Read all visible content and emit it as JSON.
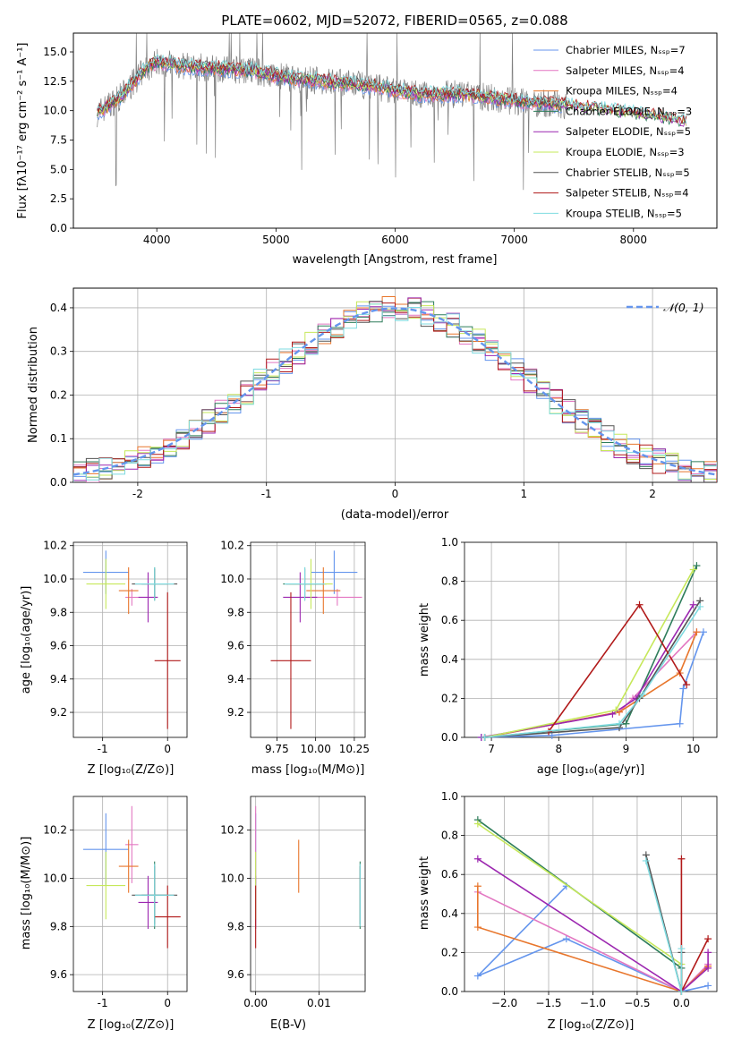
{
  "chart_data": [
    {
      "id": "spectrum",
      "type": "line",
      "title": "PLATE=0602, MJD=52072, FIBERID=0565, z=0.088",
      "xlabel": "wavelength [Angstrom, rest frame]",
      "ylabel": "Flux [fλ10⁻¹⁷ erg cm⁻² s⁻¹ A⁻¹]",
      "xlim": [
        3300,
        8700
      ],
      "ylim": [
        0,
        16.6
      ],
      "xticks": [
        4000,
        5000,
        6000,
        7000,
        8000
      ],
      "yticks": [
        0.0,
        2.5,
        5.0,
        7.5,
        10.0,
        12.5,
        15.0
      ],
      "grid": false,
      "legend_position": "upper right",
      "series": [
        {
          "name": "Chabrier MILES, Nₛₛₚ=7",
          "color": "#6495ed"
        },
        {
          "name": "Salpeter MILES, Nₛₛₚ=4",
          "color": "#e377c2"
        },
        {
          "name": "Kroupa MILES, Nₛₛₚ=4",
          "color": "#e8762c"
        },
        {
          "name": "Chabrier ELODIE, Nₛₛₚ=3",
          "color": "#2e7d5b"
        },
        {
          "name": "Salpeter ELODIE, Nₛₛₚ=5",
          "color": "#9c27b0"
        },
        {
          "name": "Kroupa ELODIE, Nₛₛₚ=3",
          "color": "#c6e85a"
        },
        {
          "name": "Chabrier STELIB, Nₛₛₚ=5",
          "color": "#555555"
        },
        {
          "name": "Salpeter STELIB, Nₛₛₚ=4",
          "color": "#b11a1a"
        },
        {
          "name": "Kroupa STELIB, Nₛₛₚ=5",
          "color": "#7fdbe0"
        }
      ],
      "data_color": "#808080",
      "continuum": {
        "x": [
          3500,
          3700,
          3900,
          4000,
          4200,
          4500,
          4800,
          5100,
          5400,
          5800,
          6200,
          6600,
          7000,
          7400,
          7800,
          8200,
          8450
        ],
        "y": [
          9.8,
          11.2,
          13.5,
          14.2,
          13.8,
          13.6,
          13.4,
          12.8,
          12.5,
          12.1,
          11.4,
          11.4,
          10.8,
          10.5,
          10.0,
          9.5,
          9.0
        ]
      }
    },
    {
      "id": "residuals",
      "type": "histogram",
      "xlabel": "(data-model)/error",
      "ylabel": "Normed distribution",
      "xlim": [
        -2.5,
        2.5
      ],
      "ylim": [
        0,
        0.445
      ],
      "xticks": [
        -2,
        -1,
        0,
        1,
        2
      ],
      "yticks": [
        0.0,
        0.1,
        0.2,
        0.3,
        0.4
      ],
      "grid": true,
      "legend_position": "upper right",
      "reference_curve": {
        "name": "𝒩(0, 1)",
        "color": "#6495ed",
        "style": "dashed"
      },
      "bin_width": 0.1
    },
    {
      "id": "age-vs-Z",
      "type": "errorbar",
      "xlabel": "Z [log₁₀(Z/Z⊙)]",
      "ylabel": "age  [log₁₀(age/yr)]",
      "xlim": [
        -1.45,
        0.3
      ],
      "ylim": [
        9.05,
        10.22
      ],
      "xticks": [
        -1,
        0
      ],
      "yticks": [
        9.2,
        9.4,
        9.6,
        9.8,
        10.0,
        10.2
      ],
      "grid": true
    },
    {
      "id": "age-vs-mass",
      "type": "errorbar",
      "xlabel": "mass [log₁₀(M/M⊙)]",
      "ylabel": "",
      "xlim": [
        9.58,
        10.32
      ],
      "ylim": [
        9.05,
        10.22
      ],
      "xticks": [
        9.75,
        10.0,
        10.25
      ],
      "xticklabels": [
        "9.75",
        "10.00",
        "10.25"
      ],
      "yticks": [
        9.2,
        9.4,
        9.6,
        9.8,
        10.0,
        10.2
      ],
      "grid": true
    },
    {
      "id": "massweight-vs-age",
      "type": "line",
      "xlabel": "age  [log₁₀(age/yr)]",
      "ylabel": "mass weight",
      "xlim": [
        6.6,
        10.35
      ],
      "ylim": [
        0,
        1.0
      ],
      "xticks": [
        7,
        8,
        9,
        10
      ],
      "yticks": [
        0.0,
        0.2,
        0.4,
        0.6,
        0.8,
        1.0
      ],
      "grid": true
    },
    {
      "id": "mass-vs-Z",
      "type": "errorbar",
      "xlabel": "Z [log₁₀(Z/Z⊙)]",
      "ylabel": "mass [log₁₀(M/M⊙)]",
      "xlim": [
        -1.45,
        0.3
      ],
      "ylim": [
        9.53,
        10.34
      ],
      "xticks": [
        -1,
        0
      ],
      "yticks": [
        9.6,
        9.8,
        10.0,
        10.2
      ],
      "grid": true
    },
    {
      "id": "mass-vs-EBV",
      "type": "errorbar",
      "xlabel": "E(B-V)",
      "ylabel": "",
      "xlim": [
        -0.0008,
        0.0173
      ],
      "ylim": [
        9.53,
        10.34
      ],
      "xticks": [
        0.0,
        0.01
      ],
      "xticklabels": [
        "0.00",
        "0.01"
      ],
      "yticks": [
        9.6,
        9.8,
        10.0,
        10.2
      ],
      "grid": true
    },
    {
      "id": "massweight-vs-Z",
      "type": "line",
      "xlabel": "Z [log₁₀(Z/Z⊙)]",
      "ylabel": "mass weight",
      "xlim": [
        -2.45,
        0.4
      ],
      "ylim": [
        0,
        1.0
      ],
      "xticks": [
        -2.0,
        -1.5,
        -1.0,
        -0.5,
        0.0
      ],
      "xticklabels": [
        "−2.0",
        "−1.5",
        "−1.0",
        "−0.5",
        "0.0"
      ],
      "yticks": [
        0.0,
        0.2,
        0.4,
        0.6,
        0.8,
        1.0
      ],
      "grid": true
    }
  ],
  "fits": [
    {
      "color": "#6495ed",
      "Z": -0.95,
      "Zerr": 0.35,
      "age": 10.04,
      "ageerr": 0.13,
      "mass": 10.12,
      "masserr": 0.15,
      "ebv": 0.0,
      "ebverr": 0.0,
      "ages": [
        6.85,
        7.9,
        9.8,
        9.85,
        10.15
      ],
      "w_age": [
        0.0,
        0.01,
        0.07,
        0.25,
        0.54
      ],
      "mets": [
        0.3,
        0.0,
        -1.3,
        -2.3,
        -1.3
      ],
      "w_met": [
        0.03,
        0.0,
        0.27,
        0.08,
        0.54
      ]
    },
    {
      "color": "#e377c2",
      "Z": -0.55,
      "Zerr": 0.1,
      "age": 9.89,
      "ageerr": 0.05,
      "mass": 10.14,
      "masserr": 0.16,
      "ebv": 0.0,
      "ebverr": 0.0,
      "ages": [
        6.9,
        8.9,
        9.1,
        10.05
      ],
      "w_age": [
        0.0,
        0.13,
        0.2,
        0.54
      ],
      "mets": [
        -2.3,
        0.0,
        0.3
      ],
      "w_met": [
        0.51,
        0.0,
        0.14
      ]
    },
    {
      "color": "#e8762c",
      "Z": -0.6,
      "Zerr": 0.15,
      "age": 9.93,
      "ageerr": 0.14,
      "mass": 10.05,
      "masserr": 0.11,
      "ebv": 0.0068,
      "ebverr": 0.0,
      "ages": [
        6.9,
        8.9,
        9.8,
        10.05
      ],
      "w_age": [
        0.0,
        0.13,
        0.33,
        0.54
      ],
      "mets": [
        -2.3,
        -2.3,
        0.0,
        0.3
      ],
      "w_met": [
        0.54,
        0.33,
        0.0,
        0.13
      ]
    },
    {
      "color": "#2e7d5b",
      "Z": -0.2,
      "Zerr": 0.2,
      "age": 9.97,
      "ageerr": 0.1,
      "mass": 9.93,
      "masserr": 0.14,
      "ebv": 0.0165,
      "ebverr": 0.0,
      "ages": [
        6.9,
        9.0,
        10.05
      ],
      "w_age": [
        0.0,
        0.07,
        0.88
      ],
      "mets": [
        -2.3,
        0.0,
        0.0
      ],
      "w_met": [
        0.88,
        0.12,
        0.0
      ]
    },
    {
      "color": "#9c27b0",
      "Z": -0.3,
      "Zerr": 0.15,
      "age": 9.89,
      "ageerr": 0.15,
      "mass": 9.9,
      "masserr": 0.11,
      "ebv": 0.0,
      "ebverr": 0.0,
      "ages": [
        6.85,
        8.8,
        9.15,
        10.0
      ],
      "w_age": [
        0.0,
        0.12,
        0.2,
        0.68
      ],
      "mets": [
        -2.3,
        0.0,
        0.3,
        0.3
      ],
      "w_met": [
        0.68,
        0.0,
        0.12,
        0.2
      ]
    },
    {
      "color": "#c6e85a",
      "Z": -0.95,
      "Zerr": 0.3,
      "age": 9.97,
      "ageerr": 0.15,
      "mass": 9.97,
      "masserr": 0.14,
      "ebv": 0.0,
      "ebverr": 0.0,
      "ages": [
        6.9,
        8.85,
        10.0
      ],
      "w_age": [
        0.0,
        0.14,
        0.86
      ],
      "mets": [
        -2.3,
        0.0,
        0.0
      ],
      "w_met": [
        0.86,
        0.14,
        0.0
      ]
    },
    {
      "color": "#555555",
      "Z": -0.2,
      "Zerr": 0.35,
      "age": 9.97,
      "ageerr": 0.09,
      "mass": 9.93,
      "masserr": 0.12,
      "ebv": 0.0165,
      "ebverr": 0.0,
      "ages": [
        6.9,
        8.9,
        9.2,
        10.1
      ],
      "w_age": [
        0.0,
        0.05,
        0.2,
        0.7
      ],
      "mets": [
        -0.4,
        0.0,
        0.0
      ],
      "w_met": [
        0.7,
        0.0,
        0.2
      ]
    },
    {
      "color": "#b11a1a",
      "Z": 0.0,
      "Zerr": 0.2,
      "age": 9.51,
      "ageerr": 0.41,
      "mass": 9.84,
      "masserr": 0.13,
      "ebv": 0.0,
      "ebverr": 0.0,
      "ages": [
        7.85,
        9.2,
        9.9
      ],
      "w_age": [
        0.03,
        0.68,
        0.27
      ],
      "mets": [
        0.0,
        0.0,
        0.3
      ],
      "w_met": [
        0.68,
        0.0,
        0.27
      ]
    },
    {
      "color": "#7fdbe0",
      "Z": -0.2,
      "Zerr": 0.3,
      "age": 9.97,
      "ageerr": 0.1,
      "mass": 9.93,
      "masserr": 0.13,
      "ebv": 0.0165,
      "ebverr": 0.0,
      "ages": [
        6.9,
        8.9,
        9.25,
        10.1
      ],
      "w_age": [
        0.0,
        0.07,
        0.22,
        0.67
      ],
      "mets": [
        -0.4,
        0.0,
        0.0
      ],
      "w_met": [
        0.67,
        0.0,
        0.22
      ]
    }
  ]
}
